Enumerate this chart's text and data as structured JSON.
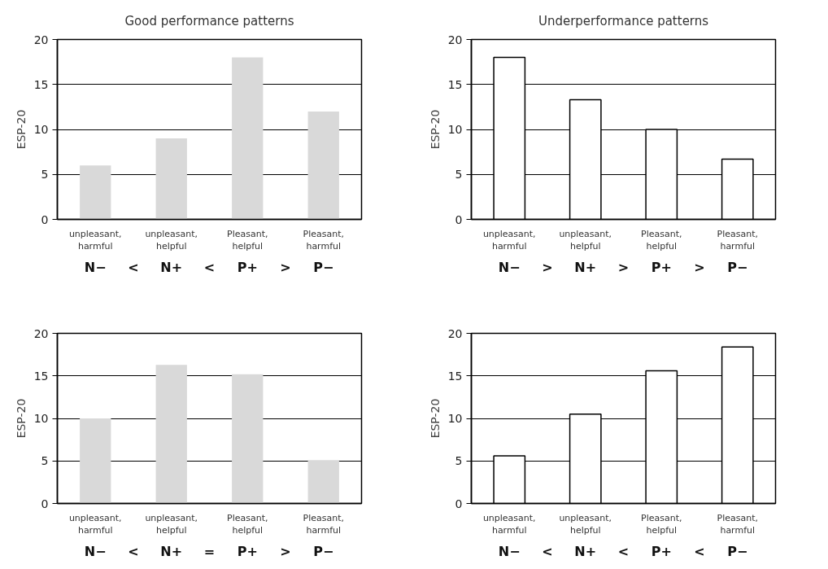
{
  "chart_data": [
    {
      "type": "bar",
      "title": "Good performance patterns",
      "categories": [
        "unpleasant, harmful",
        "unpleasant, helpful",
        "Pleasant, helpful",
        "Pleasant, harmful"
      ],
      "ylabel": "ESP-20",
      "series": [
        {
          "color": "#d9d9d9",
          "values": [
            6,
            9,
            18,
            12
          ]
        }
      ],
      "ylim": [
        0,
        20
      ],
      "yticks": [
        0,
        5,
        10,
        15,
        20
      ],
      "grid": "y",
      "annotations": [
        "N− < N+ < P+ > P−"
      ]
    },
    {
      "type": "bar",
      "title": "Underperformance patterns",
      "categories": [
        "unpleasant, harmful",
        "unpleasant, helpful",
        "Pleasant, helpful",
        "Pleasant, harmful"
      ],
      "ylabel": "ESP-20",
      "series": [
        {
          "color": "#ffffff",
          "values": [
            18,
            13.3,
            10,
            6.7
          ]
        }
      ],
      "ylim": [
        0,
        20
      ],
      "yticks": [
        0,
        5,
        10,
        15,
        20
      ],
      "grid": "y",
      "annotations": [
        "N− > N+ > P+ > P−"
      ]
    },
    {
      "type": "bar",
      "categories": [
        "unpleasant, harmful",
        "unpleasant, helpful",
        "Pleasant, helpful",
        "Pleasant, harmful"
      ],
      "ylabel": "ESP-20",
      "series": [
        {
          "color": "#d9d9d9",
          "values": [
            10,
            16.3,
            15.2,
            5.1
          ]
        }
      ],
      "ylim": [
        0,
        20
      ],
      "yticks": [
        0,
        5,
        10,
        15,
        20
      ],
      "grid": "y",
      "annotations": [
        "N− < N+ = P+ > P−"
      ]
    },
    {
      "type": "bar",
      "categories": [
        "unpleasant, harmful",
        "unpleasant, helpful",
        "Pleasant, helpful",
        "Pleasant, harmful"
      ],
      "ylabel": "ESP-20",
      "series": [
        {
          "color": "#ffffff",
          "values": [
            5.6,
            10.5,
            15.6,
            18.4
          ]
        }
      ],
      "ylim": [
        0,
        20
      ],
      "yticks": [
        0,
        5,
        10,
        15,
        20
      ],
      "grid": "y",
      "annotations": [
        "N− < N+ < P+ < P−"
      ]
    }
  ]
}
